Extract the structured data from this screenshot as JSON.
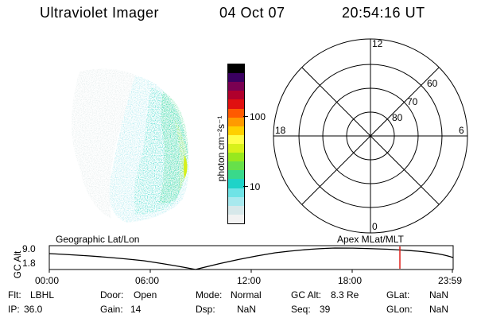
{
  "header": {
    "title": "Ultraviolet Imager",
    "date": "04 Oct 07",
    "time": "20:54:16 UT"
  },
  "colorbar": {
    "unit_label": "photon cm⁻²s⁻¹",
    "ticks": [
      "100",
      "10"
    ],
    "colors": [
      "#f2f2f2",
      "#d7e8ea",
      "#a8e9ee",
      "#6fe3e6",
      "#1fd3c8",
      "#39d98b",
      "#67e04a",
      "#98e81e",
      "#d8f11a",
      "#fffe48",
      "#ffd000",
      "#ff9a00",
      "#ff5a00",
      "#e01010",
      "#b0002c",
      "#7a0052",
      "#3a0060",
      "#000000"
    ]
  },
  "polar_plot": {
    "labels": {
      "top": "12",
      "bottom": "0",
      "left": "18",
      "right": "6"
    },
    "rings": [
      "60",
      "70",
      "80"
    ]
  },
  "timeline": {
    "left_title": "Geographic Lat/Lon",
    "right_title": "Apex MLat/MLT",
    "y_axis_title": "GC Alt",
    "y_ticks": [
      "9.0",
      "1.8"
    ],
    "x_ticks": [
      "00:00",
      "06:00",
      "12:00",
      "18:00",
      "23:59"
    ],
    "marker_color": "#e0201a"
  },
  "info": {
    "rows": [
      [
        {
          "label": "Flt:",
          "value": "LBHL"
        },
        {
          "label": "Door:",
          "value": "Open"
        },
        {
          "label": "Mode:",
          "value": "Normal"
        },
        {
          "label": "GC Alt:",
          "value": "8.3 Re"
        },
        {
          "label": "GLat:",
          "value": "NaN"
        }
      ],
      [
        {
          "label": "IP:",
          "value": "36.0"
        },
        {
          "label": "Gain:",
          "value": "14"
        },
        {
          "label": "Dsp:",
          "value": "NaN"
        },
        {
          "label": "Seq:",
          "value": "39"
        },
        {
          "label": "GLon:",
          "value": "NaN"
        }
      ]
    ]
  }
}
